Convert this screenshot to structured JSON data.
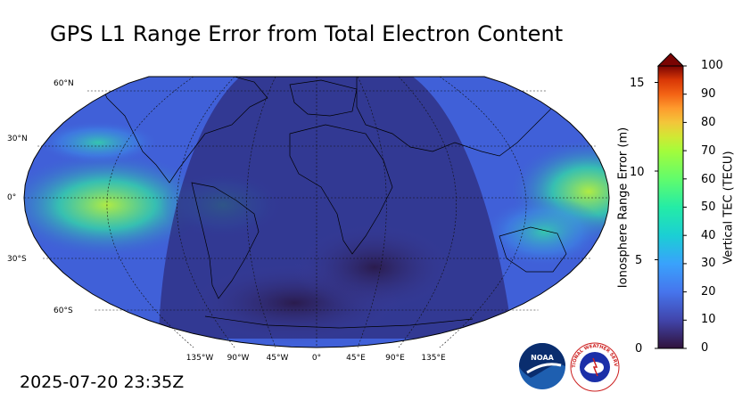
{
  "title": "GPS L1 Range Error from Total Electron Content",
  "timestamp": "2025-07-20 23:35Z",
  "map": {
    "projection": "robinson",
    "lat_labels": [
      "60°N",
      "30°N",
      "0°",
      "30°S",
      "60°S"
    ],
    "lon_labels": [
      "135°W",
      "90°W",
      "45°W",
      "0°",
      "45°E",
      "90°E",
      "135°E"
    ],
    "grid": "dashed",
    "night_shading": "both sides of Atlantic/Africa daylight band",
    "colors": {
      "ocean_low": "#2b2460",
      "ocean_mid": "#3e5bd6",
      "high": "#b6f23c",
      "coast": "#000000"
    }
  },
  "colorbar": {
    "left_axis_title": "Ionosphere Range Error (m)",
    "left_ticks": [
      "0",
      "5",
      "10",
      "15"
    ],
    "right_axis_title": "Vertical TEC (TECU)",
    "right_ticks": [
      "0",
      "10",
      "20",
      "30",
      "40",
      "50",
      "60",
      "70",
      "80",
      "90",
      "100"
    ],
    "extend": "max",
    "colormap": "turbo"
  },
  "logos": {
    "noaa": "NOAA",
    "nws": "NATIONAL WEATHER SERVICE"
  }
}
